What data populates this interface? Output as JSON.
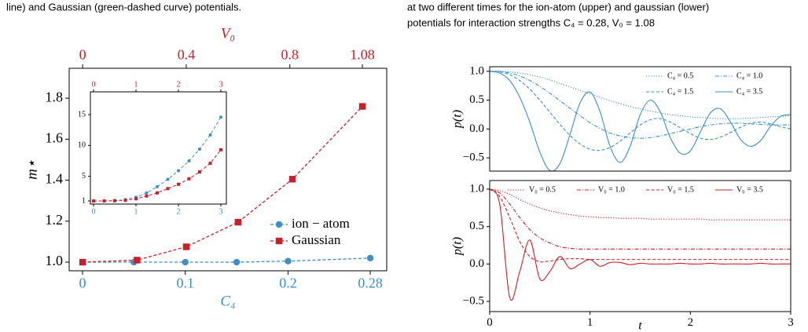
{
  "captions": {
    "left": "line) and Gaussian (green-dashed curve) potentials.",
    "right": [
      "at two different times for the ion-atom (upper) and gaussian (lower)",
      "potentials for interaction strengths C₄ = 0.28, V₀ = 1.08"
    ]
  },
  "chart_data": [
    {
      "type": "line",
      "xlabel": "C₄",
      "x2label": "V₀",
      "ylabel": "m⋆",
      "xlim": [
        -0.013,
        0.296
      ],
      "xticks": [
        0,
        0.1,
        0.2,
        0.28
      ],
      "xaxis_color": "#3d8fc6",
      "x2lim": [
        -0.052,
        1.174
      ],
      "x2ticks": [
        0,
        0.4,
        0.8,
        1.08
      ],
      "x2axis_color": "#c8202b",
      "ylim": [
        0.958,
        1.946
      ],
      "yticks": [
        {
          "value": 1,
          "label": "1.0"
        },
        1.2,
        1.4,
        1.6,
        1.8
      ],
      "legend": "lower right",
      "legend_columns": 1,
      "series": [
        {
          "name": "ion − atom",
          "color": "#3d8fc6",
          "marker": "circle",
          "dash": "dashed",
          "xaxis": "x",
          "x": [
            0,
            0.05,
            0.1,
            0.15,
            0.2,
            0.28
          ],
          "values": [
            1.0,
            1.0,
            1.0,
            1.0,
            1.005,
            1.02
          ]
        },
        {
          "name": "Gaussian",
          "color": "#c8202b",
          "marker": "square",
          "dash": "dashed",
          "xaxis": "x2",
          "x": [
            0,
            0.21,
            0.4,
            0.6,
            0.81,
            1.08
          ],
          "values": [
            1.0,
            1.01,
            1.075,
            1.195,
            1.405,
            1.76
          ]
        }
      ]
    },
    {
      "type": "line",
      "xlim": [
        -0.074,
        3.13
      ],
      "xticks": [
        0,
        1,
        2,
        3
      ],
      "xaxis_color": "#3d8fc6",
      "x2lim": [
        -0.074,
        3.13
      ],
      "x2ticks": [
        0,
        1,
        2,
        3
      ],
      "x2axis_color": "#c8202b",
      "ylim": [
        0.49,
        18.7
      ],
      "yticks": [
        1,
        5,
        10,
        15
      ],
      "series": [
        {
          "color": "#3d8fc6",
          "marker": "circle",
          "dash": "dashed",
          "xaxis": "x",
          "x": [
            0,
            0.25,
            0.5,
            0.75,
            1,
            1.25,
            1.5,
            1.75,
            2,
            2.25,
            2.5,
            2.75,
            3
          ],
          "values": [
            1,
            1,
            1.05,
            1.2,
            1.6,
            2.3,
            3.3,
            4.5,
            5.9,
            7.5,
            9.4,
            11.7,
            14.6
          ]
        },
        {
          "color": "#c8202b",
          "marker": "square",
          "dash": "dashed",
          "xaxis": "x2",
          "x": [
            0,
            0.25,
            0.5,
            0.75,
            1,
            1.25,
            1.5,
            1.75,
            2,
            2.25,
            2.5,
            2.75,
            3
          ],
          "values": [
            1,
            1,
            1.03,
            1.1,
            1.35,
            1.8,
            2.3,
            3,
            3.7,
            4.6,
            5.7,
            7.1,
            9.3
          ]
        }
      ]
    },
    {
      "type": "curve",
      "ylabel": "p(t)",
      "xlim": [
        0,
        3
      ],
      "ylim": [
        -0.73,
        1.08
      ],
      "yticks": [
        {
          "value": -0.5,
          "label": "−0.5"
        },
        {
          "value": 0,
          "label": "0.0"
        },
        0.5,
        {
          "value": 1,
          "label": "1.0"
        }
      ],
      "legend": "upper right",
      "legend_columns": 2,
      "x": [
        0,
        0.1,
        0.2,
        0.3,
        0.4,
        0.5,
        0.6,
        0.7,
        0.8,
        0.9,
        1,
        1.1,
        1.2,
        1.3,
        1.4,
        1.5,
        1.6,
        1.7,
        1.8,
        1.9,
        2,
        2.1,
        2.2,
        2.3,
        2.4,
        2.5,
        2.6,
        2.7,
        2.8,
        2.9,
        3
      ],
      "series": [
        {
          "name": "C₄ = 0.5",
          "color": "#3d8fc6",
          "dash": "dotted",
          "values": [
            1,
            1,
            0.99,
            0.97,
            0.94,
            0.9,
            0.85,
            0.79,
            0.73,
            0.67,
            0.61,
            0.55,
            0.49,
            0.44,
            0.39,
            0.35,
            0.31,
            0.28,
            0.25,
            0.23,
            0.21,
            0.2,
            0.19,
            0.18,
            0.18,
            0.18,
            0.19,
            0.2,
            0.21,
            0.22,
            0.23
          ]
        },
        {
          "name": "C₄ = 1.0",
          "color": "#3d8fc6",
          "dash": "dashdot",
          "values": [
            1,
            1,
            0.97,
            0.92,
            0.84,
            0.74,
            0.62,
            0.49,
            0.36,
            0.23,
            0.11,
            0.01,
            -0.07,
            -0.12,
            -0.15,
            -0.16,
            -0.15,
            -0.12,
            -0.08,
            -0.04,
            0,
            0.04,
            0.07,
            0.09,
            0.1,
            0.1,
            0.09,
            0.08,
            0.07,
            0.07,
            0.07
          ]
        },
        {
          "name": "C₄ = 1.5",
          "color": "#3d8fc6",
          "dash": "dashed",
          "values": [
            1,
            0.99,
            0.94,
            0.84,
            0.69,
            0.5,
            0.29,
            0.08,
            -0.11,
            -0.26,
            -0.35,
            -0.37,
            -0.32,
            -0.21,
            -0.07,
            0.07,
            0.16,
            0.18,
            0.12,
            0.02,
            -0.08,
            -0.16,
            -0.18,
            -0.14,
            -0.06,
            0.03,
            0.1,
            0.12,
            0.09,
            0.04,
            0
          ]
        },
        {
          "name": "C₄ = 3.5",
          "color": "#3d8fc6",
          "dash": "solid",
          "values": [
            1,
            0.97,
            0.84,
            0.55,
            0.12,
            -0.4,
            -0.72,
            -0.6,
            -0.1,
            0.45,
            0.64,
            0.3,
            -0.3,
            -0.58,
            -0.3,
            0.25,
            0.5,
            0.3,
            -0.15,
            -0.42,
            -0.38,
            -0.05,
            0.28,
            0.35,
            0.12,
            -0.18,
            -0.3,
            -0.2,
            0.05,
            0.22,
            0.25
          ]
        }
      ]
    },
    {
      "type": "curve",
      "ylabel": "p(t)",
      "xlabel": "t",
      "xlim": [
        0,
        3
      ],
      "xticks": [
        0,
        1,
        2,
        3
      ],
      "ylim": [
        -0.636,
        1.115
      ],
      "yticks": [
        {
          "value": -0.5,
          "label": "−0.5"
        },
        {
          "value": 0,
          "label": "0.0"
        },
        0.5,
        {
          "value": 1,
          "label": "1.0"
        }
      ],
      "legend": "upper right",
      "legend_columns": 4,
      "x": [
        0,
        0.1,
        0.2,
        0.3,
        0.4,
        0.5,
        0.6,
        0.7,
        0.8,
        0.9,
        1,
        1.1,
        1.2,
        1.3,
        1.4,
        1.5,
        1.6,
        1.7,
        1.8,
        1.9,
        2,
        2.1,
        2.2,
        2.3,
        2.4,
        2.5,
        2.6,
        2.7,
        2.8,
        2.9,
        3
      ],
      "series": [
        {
          "name": "V₀ = 0.5",
          "color": "#c8202b",
          "dash": "dotted",
          "values": [
            1,
            0.98,
            0.93,
            0.86,
            0.8,
            0.75,
            0.71,
            0.68,
            0.66,
            0.64,
            0.63,
            0.62,
            0.62,
            0.61,
            0.61,
            0.61,
            0.6,
            0.6,
            0.6,
            0.6,
            0.6,
            0.6,
            0.59,
            0.59,
            0.59,
            0.59,
            0.59,
            0.59,
            0.59,
            0.59,
            0.59
          ]
        },
        {
          "name": "V₀ = 1.0",
          "color": "#c8202b",
          "dash": "dashdot",
          "values": [
            1,
            0.95,
            0.8,
            0.62,
            0.46,
            0.35,
            0.28,
            0.23,
            0.21,
            0.2,
            0.2,
            0.2,
            0.2,
            0.2,
            0.2,
            0.2,
            0.2,
            0.2,
            0.2,
            0.2,
            0.2,
            0.2,
            0.2,
            0.2,
            0.2,
            0.2,
            0.2,
            0.2,
            0.2,
            0.2,
            0.2
          ]
        },
        {
          "name": "V₀ = 1.5",
          "color": "#c8202b",
          "dash": "dashed",
          "values": [
            1,
            0.9,
            0.62,
            0.3,
            0.1,
            0.03,
            0.04,
            0.06,
            0.07,
            0.07,
            0.06,
            0.06,
            0.06,
            0.06,
            0.06,
            0.06,
            0.06,
            0.06,
            0.06,
            0.06,
            0.06,
            0.06,
            0.06,
            0.06,
            0.06,
            0.06,
            0.06,
            0.06,
            0.06,
            0.06,
            0.06
          ]
        },
        {
          "name": "V₀ = 3.5",
          "color": "#c8202b",
          "dash": "solid",
          "values": [
            1,
            0.8,
            -0.45,
            -0.1,
            0.32,
            -0.2,
            -0.1,
            0.1,
            -0.06,
            0,
            0.06,
            -0.03,
            0.02,
            0.02,
            -0.01,
            0.01,
            0,
            0,
            0,
            0.01,
            0,
            0,
            0.01,
            0,
            0,
            0,
            0,
            0.01,
            0,
            0,
            0
          ]
        }
      ]
    }
  ]
}
